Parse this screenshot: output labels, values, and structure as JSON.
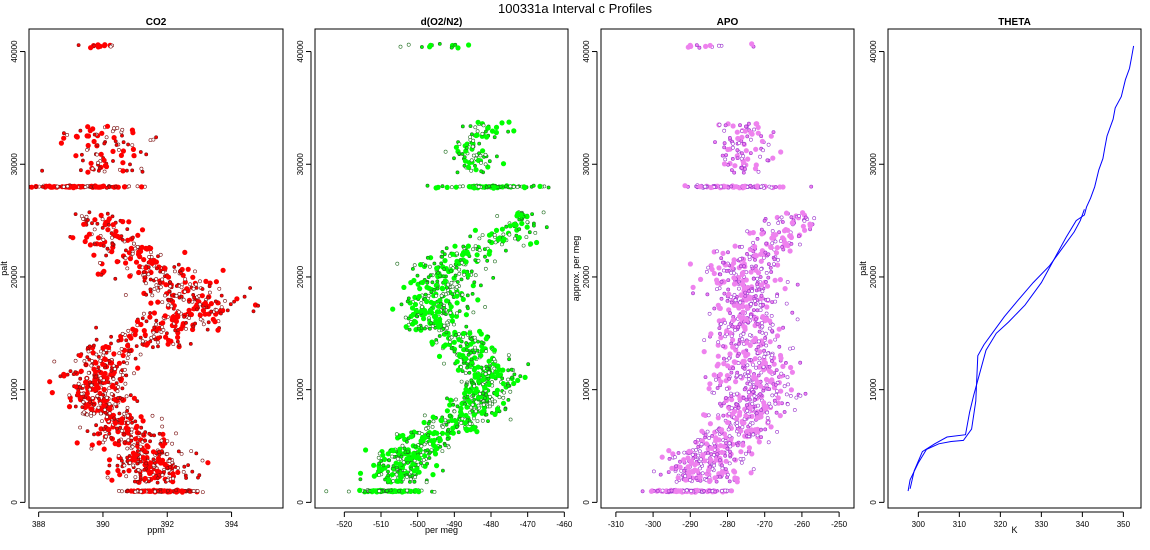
{
  "chart_data": {
    "title": "100331a   Interval c Profiles",
    "panels": [
      {
        "id": "co2",
        "type": "scatter",
        "title": "CO2",
        "xlabel": "ppm",
        "ylabel": "palt",
        "xlim": [
          387.7,
          395.6
        ],
        "ylim": [
          -500,
          42000
        ],
        "xticks": [
          388,
          390,
          392,
          394
        ],
        "yticks": [
          0,
          10000,
          20000,
          30000,
          40000
        ],
        "color": "#ff0000",
        "edge": "#7a1010",
        "profile": [
          [
            1000,
            391.8,
            0.6,
            120
          ],
          [
            2500,
            391.6,
            0.6,
            90
          ],
          [
            4000,
            391.3,
            0.6,
            90
          ],
          [
            5500,
            391.0,
            0.6,
            70
          ],
          [
            7000,
            390.5,
            0.5,
            70
          ],
          [
            8500,
            390.0,
            0.5,
            80
          ],
          [
            10000,
            389.8,
            0.5,
            80
          ],
          [
            11500,
            389.9,
            0.5,
            70
          ],
          [
            13000,
            390.1,
            0.5,
            60
          ],
          [
            14500,
            391.2,
            0.7,
            60
          ],
          [
            16000,
            392.3,
            0.8,
            70
          ],
          [
            17500,
            393.0,
            0.7,
            70
          ],
          [
            19000,
            392.3,
            0.7,
            70
          ],
          [
            20500,
            391.7,
            0.7,
            60
          ],
          [
            22000,
            391.0,
            0.6,
            50
          ],
          [
            23500,
            390.2,
            0.5,
            40
          ],
          [
            25000,
            389.9,
            0.5,
            30
          ],
          [
            28000,
            389.2,
            1.0,
            110
          ],
          [
            30000,
            390.1,
            0.6,
            30
          ],
          [
            31500,
            390.3,
            0.6,
            30
          ],
          [
            33000,
            389.9,
            0.7,
            30
          ],
          [
            40500,
            390.0,
            0.4,
            12
          ]
        ]
      },
      {
        "id": "do2n2",
        "type": "scatter",
        "title": "d(O2/N2)",
        "xlabel": "per meg",
        "ylabel": "",
        "xlim": [
          -528,
          -459
        ],
        "ylim": [
          -500,
          42000
        ],
        "xticks": [
          -520,
          -510,
          -500,
          -490,
          -480,
          -470,
          -460
        ],
        "yticks": [
          0,
          10000,
          20000,
          30000,
          40000
        ],
        "color": "#00ff00",
        "edge": "#1f6e1f",
        "profile": [
          [
            1000,
            -508,
            5,
            110
          ],
          [
            2500,
            -505,
            4,
            90
          ],
          [
            4000,
            -503,
            4,
            90
          ],
          [
            5500,
            -497,
            4,
            70
          ],
          [
            7000,
            -489,
            4,
            70
          ],
          [
            8500,
            -484,
            4,
            80
          ],
          [
            10000,
            -482,
            4,
            80
          ],
          [
            11500,
            -481,
            4,
            70
          ],
          [
            13000,
            -485,
            4,
            60
          ],
          [
            14500,
            -489,
            4,
            60
          ],
          [
            16000,
            -496,
            4,
            70
          ],
          [
            17500,
            -495,
            5,
            70
          ],
          [
            19000,
            -494,
            5,
            70
          ],
          [
            20500,
            -493,
            5,
            60
          ],
          [
            22000,
            -488,
            4,
            50
          ],
          [
            23500,
            -477,
            4,
            40
          ],
          [
            25000,
            -471,
            3,
            30
          ],
          [
            28000,
            -481,
            6,
            110
          ],
          [
            30000,
            -484,
            3,
            30
          ],
          [
            31500,
            -485,
            3,
            30
          ],
          [
            33000,
            -482,
            3,
            30
          ],
          [
            40500,
            -492,
            5,
            12
          ]
        ]
      },
      {
        "id": "apo",
        "type": "scatter",
        "title": "APO",
        "xlabel": "",
        "ylabel": "approx. per meg",
        "xlim": [
          -314,
          -246
        ],
        "ylim": [
          -500,
          42000
        ],
        "xticks": [
          -310,
          -300,
          -290,
          -280,
          -270,
          -260,
          -250
        ],
        "yticks": [
          0,
          10000,
          20000,
          30000,
          40000
        ],
        "color": "#ee82ee",
        "edge": "#9932cc",
        "profile": [
          [
            1000,
            -290,
            5,
            110
          ],
          [
            2500,
            -287,
            5,
            90
          ],
          [
            4000,
            -285,
            5,
            90
          ],
          [
            5500,
            -281,
            5,
            70
          ],
          [
            7000,
            -276,
            5,
            70
          ],
          [
            8500,
            -274,
            5,
            80
          ],
          [
            10000,
            -273,
            5,
            80
          ],
          [
            11500,
            -273,
            5,
            70
          ],
          [
            13000,
            -273,
            5,
            60
          ],
          [
            14500,
            -273,
            5,
            60
          ],
          [
            16000,
            -274,
            5,
            70
          ],
          [
            17500,
            -275,
            5,
            70
          ],
          [
            19000,
            -276,
            5,
            70
          ],
          [
            20500,
            -276,
            5,
            60
          ],
          [
            22000,
            -273,
            5,
            50
          ],
          [
            23500,
            -266,
            4,
            40
          ],
          [
            25000,
            -262,
            4,
            30
          ],
          [
            28000,
            -279,
            6,
            110
          ],
          [
            30000,
            -276,
            4,
            30
          ],
          [
            31500,
            -276,
            4,
            30
          ],
          [
            33000,
            -275,
            4,
            30
          ],
          [
            40500,
            -283,
            6,
            12
          ]
        ]
      },
      {
        "id": "theta",
        "type": "line",
        "title": "THETA",
        "xlabel": "K",
        "ylabel": "palt",
        "xlim": [
          292.6,
          354.3
        ],
        "ylim": [
          -500,
          42000
        ],
        "xticks": [
          300,
          310,
          320,
          330,
          340,
          350
        ],
        "yticks": [
          0,
          10000,
          20000,
          30000,
          40000
        ],
        "color": "#0000ff",
        "series": [
          {
            "x": [
              297.5,
              298.0,
              300.0,
              302.0,
              305.0,
              308.0,
              311.0,
              313.0,
              314.0,
              314.5,
              316.0,
              318.0,
              321.0,
              324.0,
              328.0,
              332.0,
              335.0,
              338.0,
              339.5,
              340.5
            ],
            "y": [
              1000,
              2000,
              3500,
              4700,
              5200,
              5400,
              5500,
              6500,
              9000,
              13000,
              14000,
              15000,
              16500,
              17800,
              19500,
              21000,
              22500,
              24000,
              25000,
              26000
            ]
          },
          {
            "x": [
              298.0,
              299.0,
              301.0,
              304.0,
              307.0,
              311.5,
              312.5,
              313.5,
              316.5,
              319.0,
              322.0,
              326.0,
              330.0,
              333.0,
              336.0,
              338.5,
              340.5,
              341.0,
              342.0,
              343.0,
              344.0,
              345.0,
              345.5,
              346.0,
              347.5,
              348.0,
              349.5,
              350.5,
              351.5,
              352.0,
              352.5
            ],
            "y": [
              1200,
              2800,
              4500,
              5200,
              5800,
              6000,
              8000,
              9500,
              13500,
              15000,
              16000,
              17500,
              19500,
              21500,
              23500,
              25000,
              25500,
              26200,
              27000,
              28000,
              29500,
              30500,
              31500,
              32500,
              34000,
              35000,
              36000,
              37500,
              38500,
              39500,
              40500
            ]
          }
        ]
      }
    ]
  }
}
